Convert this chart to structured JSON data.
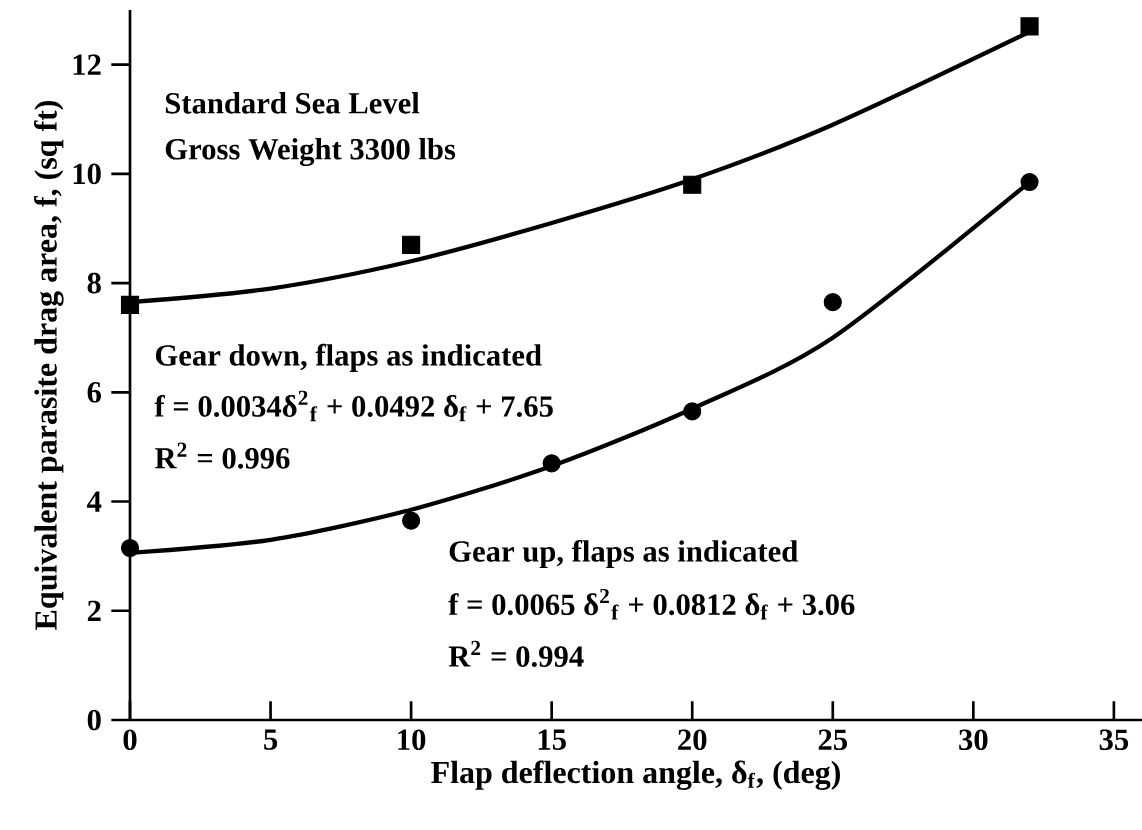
{
  "chart_data": {
    "type": "scatter",
    "xlabel": "Flap deflection angle, δ$_{f}$, (deg)",
    "ylabel": "Equivalent parasite drag area, f, (sq ft)",
    "xlim": [
      0,
      36
    ],
    "ylim": [
      0,
      13
    ],
    "xticks": [
      0,
      5,
      10,
      15,
      20,
      25,
      30,
      35
    ],
    "yticks": [
      0,
      2,
      4,
      6,
      8,
      10,
      12
    ],
    "annotations": [
      "Standard Sea Level",
      "Gross Weight 3300 lbs",
      "Gear down, flaps as indicated",
      "f = 0.0034δ$^{2}$$_{f}$ + 0.0492 δ$_{f}$ + 7.65",
      "R$^{2}$ = 0.996",
      "Gear up, flaps as indicated",
      "f = 0.0065 δ$^{2}$$_{f}$ + 0.0812 δ$_{f}$ + 3.06",
      "R$^{2}$ = 0.994"
    ],
    "series": [
      {
        "marker": "square",
        "color": "#000000",
        "x": [
          0,
          10,
          20,
          32
        ],
        "values": [
          7.6,
          8.7,
          9.8,
          12.7
        ]
      },
      {
        "marker": "circle",
        "color": "#000000",
        "x": [
          0,
          10,
          15,
          20,
          25,
          32
        ],
        "values": [
          3.15,
          3.65,
          4.7,
          5.65,
          7.65,
          9.85
        ]
      },
      {
        "type": "line",
        "marker": "none",
        "color": "#000000",
        "x": [
          0,
          5,
          10,
          15,
          20,
          25,
          32
        ],
        "values": [
          7.65,
          7.9,
          8.4,
          9.1,
          9.9,
          10.9,
          12.6
        ]
      },
      {
        "type": "line",
        "marker": "none",
        "color": "#000000",
        "x": [
          0,
          5,
          10,
          15,
          20,
          25,
          32
        ],
        "values": [
          3.06,
          3.3,
          3.85,
          4.65,
          5.7,
          7.0,
          9.85
        ]
      }
    ]
  }
}
